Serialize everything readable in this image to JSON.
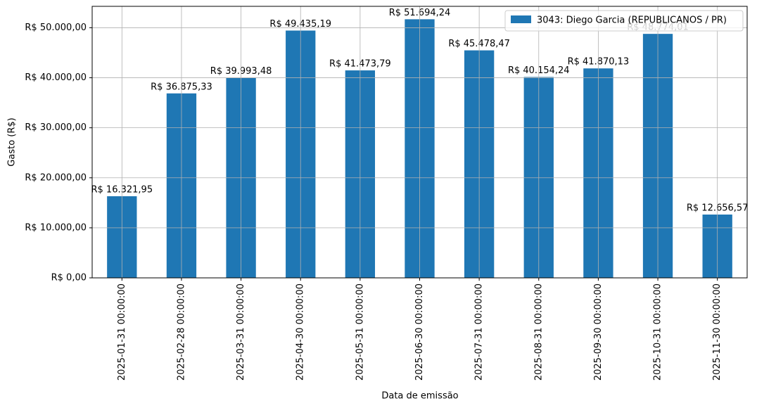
{
  "chart_data": {
    "type": "bar",
    "xlabel": "Data de emissão",
    "ylabel": "Gasto (R$)",
    "categories": [
      "2025-01-31 00:00:00",
      "2025-02-28 00:00:00",
      "2025-03-31 00:00:00",
      "2025-04-30 00:00:00",
      "2025-05-31 00:00:00",
      "2025-06-30 00:00:00",
      "2025-07-31 00:00:00",
      "2025-08-31 00:00:00",
      "2025-09-30 00:00:00",
      "2025-10-31 00:00:00",
      "2025-11-30 00:00:00"
    ],
    "series": [
      {
        "name": "3043: Diego Garcia (REPUBLICANOS / PR)",
        "color": "#1f77b4",
        "values": [
          16321.95,
          36875.33,
          39993.48,
          49435.19,
          41473.79,
          51694.24,
          45478.47,
          40154.24,
          41870.13,
          48774.01,
          12656.57
        ],
        "value_labels": [
          "R$ 16.321,95",
          "R$ 36.875,33",
          "R$ 39.993,48",
          "R$ 49.435,19",
          "R$ 41.473,79",
          "R$ 51.694,24",
          "R$ 45.478,47",
          "R$ 40.154,24",
          "R$ 41.870,13",
          "R$ 48.774,01",
          "R$ 12.656,57"
        ]
      }
    ],
    "ylim": [
      0,
      54279
    ],
    "yticks": [
      {
        "value": 0,
        "label": "R$ 0,00"
      },
      {
        "value": 10000,
        "label": "R$ 10.000,00"
      },
      {
        "value": 20000,
        "label": "R$ 20.000,00"
      },
      {
        "value": 30000,
        "label": "R$ 30.000,00"
      },
      {
        "value": 40000,
        "label": "R$ 40.000,00"
      },
      {
        "value": 50000,
        "label": "R$ 50.000,00"
      }
    ],
    "grid": true,
    "legend": "upper right"
  }
}
